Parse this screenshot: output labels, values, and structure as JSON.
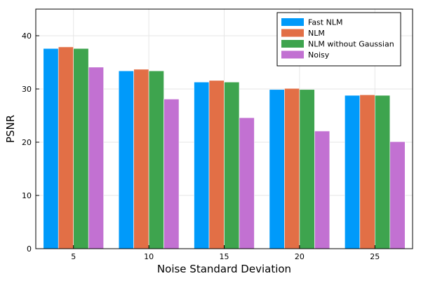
{
  "chart_data": {
    "type": "bar",
    "title": "",
    "xlabel": "Noise Standard Deviation",
    "ylabel": "PSNR",
    "categories": [
      "5",
      "10",
      "15",
      "20",
      "25"
    ],
    "ylim": [
      0,
      45
    ],
    "yticks": [
      0,
      10,
      20,
      30,
      40
    ],
    "grid": true,
    "legend_position": "top-right",
    "series": [
      {
        "name": "Fast NLM",
        "color": "#009AFA",
        "values": [
          37.6,
          33.4,
          31.3,
          29.9,
          28.8
        ]
      },
      {
        "name": "NLM",
        "color": "#E26F46",
        "values": [
          37.9,
          33.7,
          31.6,
          30.1,
          28.9
        ]
      },
      {
        "name": "NLM without Gaussian",
        "color": "#3EA44E",
        "values": [
          37.6,
          33.4,
          31.3,
          29.9,
          28.8
        ]
      },
      {
        "name": "Noisy",
        "color": "#C271D2",
        "values": [
          34.1,
          28.1,
          24.6,
          22.1,
          20.1
        ]
      }
    ]
  }
}
